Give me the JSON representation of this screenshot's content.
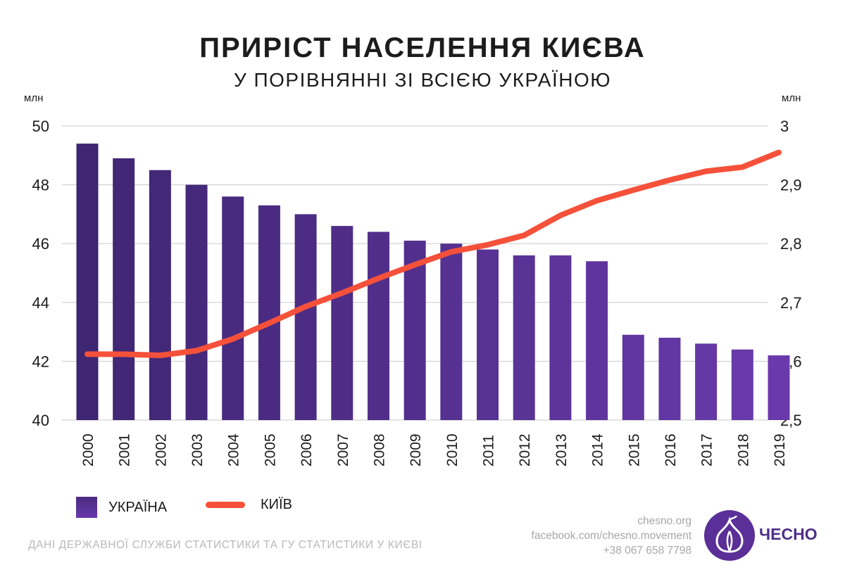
{
  "title": "ПРИРІСТ НАСЕЛЕННЯ КИЄВА",
  "subtitle": "У ПОРІВНЯННІ ЗІ ВСІЄЮ УКРАЇНОЮ",
  "colors": {
    "bar_dark": "#3f2672",
    "bar_light": "#6a3aac",
    "line": "#f5513a",
    "grid": "#c9c9c9"
  },
  "chart_data": {
    "type": "bar",
    "categories": [
      "2000",
      "2001",
      "2002",
      "2003",
      "2004",
      "2005",
      "2006",
      "2007",
      "2008",
      "2009",
      "2010",
      "2011",
      "2012",
      "2013",
      "2014",
      "2015",
      "2016",
      "2017",
      "2018",
      "2019"
    ],
    "left_axis": {
      "unit": "млн",
      "ylim": [
        40,
        50
      ],
      "ticks": [
        "40",
        "42",
        "44",
        "46",
        "48",
        "50"
      ]
    },
    "right_axis": {
      "unit": "млн",
      "ylim": [
        2.5,
        3.0
      ],
      "ticks": [
        "2,5",
        "2,6",
        "2,7",
        "2,8",
        "2,9",
        "3"
      ]
    },
    "grid": true,
    "series": [
      {
        "name": "УКРАЇНА",
        "type": "bar",
        "axis": "left",
        "values": [
          49.4,
          48.9,
          48.5,
          48.0,
          47.6,
          47.3,
          47.0,
          46.6,
          46.4,
          46.1,
          46.0,
          45.8,
          45.6,
          45.6,
          45.4,
          42.9,
          42.8,
          42.6,
          42.4,
          42.2
        ]
      },
      {
        "name": "КИЇВ",
        "type": "line",
        "axis": "right",
        "values": [
          2.612,
          2.612,
          2.61,
          2.618,
          2.638,
          2.665,
          2.693,
          2.716,
          2.741,
          2.764,
          2.786,
          2.798,
          2.814,
          2.848,
          2.873,
          2.891,
          2.908,
          2.923,
          2.93,
          2.955
        ]
      }
    ],
    "legend_position": "bottom-left"
  },
  "legend": {
    "ukraine": "УКРАЇНА",
    "kyiv": "КИЇВ"
  },
  "source": "ДАНІ ДЕРЖАВНОЇ СЛУЖБИ СТАТИСТИКИ ТА ГУ СТАТИСТИКИ У КИЄВІ",
  "contacts": {
    "site": "chesno.org",
    "facebook": "facebook.com/chesno.movement",
    "phone": "+38 067 658 7798"
  },
  "logo": {
    "text": "ЧЕСНО",
    "icon": "garlic-icon"
  }
}
